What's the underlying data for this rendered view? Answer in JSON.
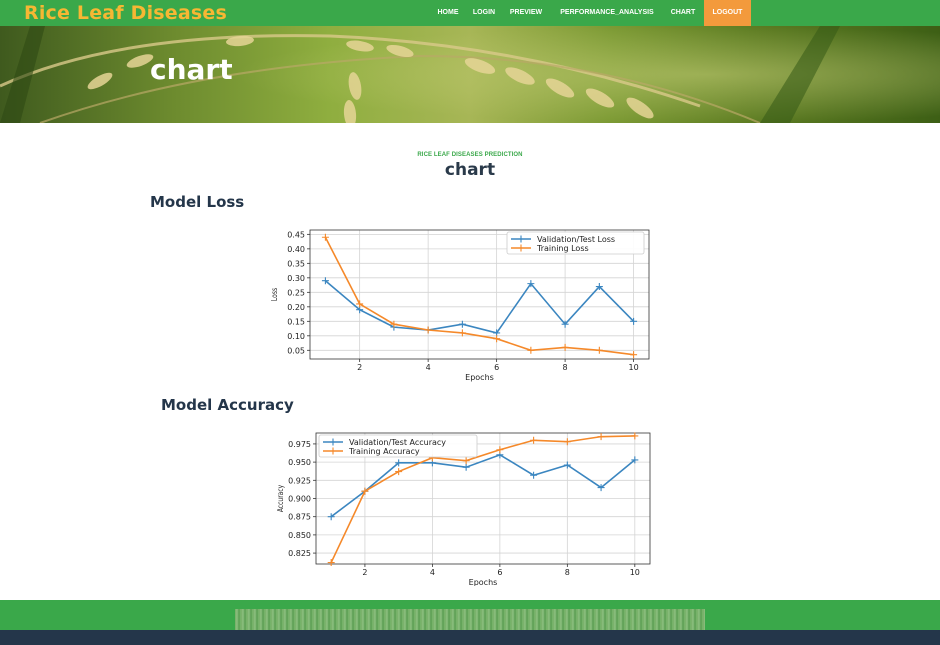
{
  "brand": "Rice Leaf Diseases",
  "nav": {
    "items": [
      {
        "label": "HOME",
        "active": false
      },
      {
        "label": "LOGIN",
        "active": false
      },
      {
        "label": "PREVIEW",
        "active": false
      },
      {
        "label": "PERFORMANCE_ANALYSIS",
        "active": false
      },
      {
        "label": "CHART",
        "active": false
      },
      {
        "label": "LOGOUT",
        "active": true
      }
    ]
  },
  "hero": {
    "title": "chart"
  },
  "page": {
    "sub_label": "RICE LEAF DISEASES PREDICTION",
    "title": "chart",
    "loss_heading": "Model Loss",
    "accuracy_heading": "Model Accuracy"
  },
  "colors": {
    "primary_green": "#3aa84a",
    "brand_orange": "#f7b733",
    "active_nav": "#f39a3c",
    "dark_navy": "#24364a",
    "validation_series": "#3b86c0",
    "training_series": "#f5892a"
  },
  "chart_data": [
    {
      "type": "line",
      "xlabel": "Epochs",
      "ylabel": "Loss",
      "x": [
        1,
        2,
        3,
        4,
        5,
        6,
        7,
        8,
        9,
        10
      ],
      "xticks": [
        2,
        4,
        6,
        8,
        10
      ],
      "xlim": [
        0.55,
        10.45
      ],
      "ylim": [
        0.02,
        0.465
      ],
      "yticks": [
        0.05,
        0.1,
        0.15,
        0.2,
        0.25,
        0.3,
        0.35,
        0.4,
        0.45
      ],
      "ytick_labels": [
        "0.05",
        "0.10",
        "0.15",
        "0.20",
        "0.25",
        "0.30",
        "0.35",
        "0.40",
        "0.45"
      ],
      "grid": true,
      "legend_position": "top-right",
      "series": [
        {
          "name": "Validation/Test Loss",
          "color": "#3b86c0",
          "values": [
            0.29,
            0.19,
            0.13,
            0.12,
            0.14,
            0.11,
            0.28,
            0.14,
            0.27,
            0.15
          ]
        },
        {
          "name": "Training Loss",
          "color": "#f5892a",
          "values": [
            0.44,
            0.21,
            0.14,
            0.12,
            0.11,
            0.09,
            0.05,
            0.06,
            0.05,
            0.035
          ]
        }
      ]
    },
    {
      "type": "line",
      "xlabel": "Epochs",
      "ylabel": "Accuracy",
      "x": [
        1,
        2,
        3,
        4,
        5,
        6,
        7,
        8,
        9,
        10
      ],
      "xticks": [
        2,
        4,
        6,
        8,
        10
      ],
      "xlim": [
        0.55,
        10.45
      ],
      "ylim": [
        0.81,
        0.99
      ],
      "yticks": [
        0.825,
        0.85,
        0.875,
        0.9,
        0.925,
        0.95,
        0.975
      ],
      "ytick_labels": [
        "0.825",
        "0.850",
        "0.875",
        "0.900",
        "0.925",
        "0.950",
        "0.975"
      ],
      "grid": true,
      "legend_position": "top-left",
      "series": [
        {
          "name": "Validation/Test Accuracy",
          "color": "#3b86c0",
          "values": [
            0.875,
            0.91,
            0.949,
            0.949,
            0.943,
            0.96,
            0.932,
            0.946,
            0.915,
            0.953
          ]
        },
        {
          "name": "Training Accuracy",
          "color": "#f5892a",
          "values": [
            0.812,
            0.91,
            0.937,
            0.956,
            0.952,
            0.967,
            0.98,
            0.978,
            0.985,
            0.986
          ]
        }
      ]
    }
  ]
}
